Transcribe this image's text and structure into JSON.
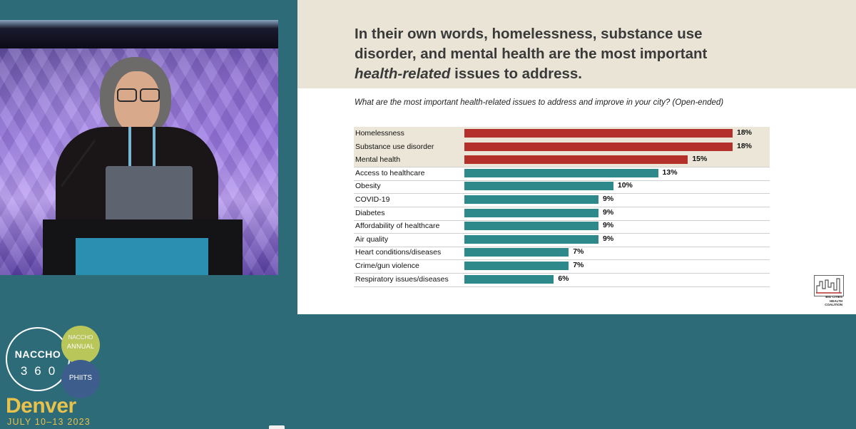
{
  "slide": {
    "title_line1": "In their own words, homelessness, substance use",
    "title_line2": "disorder, and mental health are the most important",
    "title_emph": "health-related",
    "title_line3_rest": " issues to address.",
    "question": "What are the most important health-related issues to address and improve in your city? (Open-ended)",
    "logo_text_1": "BIG CITIES",
    "logo_text_2": "HEALTH COALITION"
  },
  "colors": {
    "top_issue_bar": "#b3312a",
    "other_bar": "#2e8a8a",
    "highlight_row": "#ebe6d7",
    "background": "#2d6b78",
    "header_band": "#e9e4d5"
  },
  "chart_data": {
    "type": "bar",
    "orientation": "horizontal",
    "categories": [
      "Homelessness",
      "Substance use disorder",
      "Mental health",
      "Access to healthcare",
      "Obesity",
      "COVID-19",
      "Diabetes",
      "Affordability of healthcare",
      "Air quality",
      "Heart conditions/diseases",
      "Crime/gun violence",
      "Respiratory issues/diseases"
    ],
    "values": [
      18,
      18,
      15,
      13,
      10,
      9,
      9,
      9,
      9,
      7,
      7,
      6
    ],
    "value_labels": [
      "18%",
      "18%",
      "15%",
      "13%",
      "10%",
      "9%",
      "9%",
      "9%",
      "9%",
      "7%",
      "7%",
      "6%"
    ],
    "highlighted": [
      true,
      true,
      true,
      false,
      false,
      false,
      false,
      false,
      false,
      false,
      false,
      false
    ],
    "unit": "%",
    "xlim": [
      0,
      18
    ]
  },
  "conference": {
    "naccho": "NACCHO",
    "three_sixty": "360",
    "annual_top": "NACCHO",
    "annual": "ANNUAL",
    "phiits": "PHIITS",
    "city": "Denver",
    "dates": "JULY 10–13 2023"
  }
}
